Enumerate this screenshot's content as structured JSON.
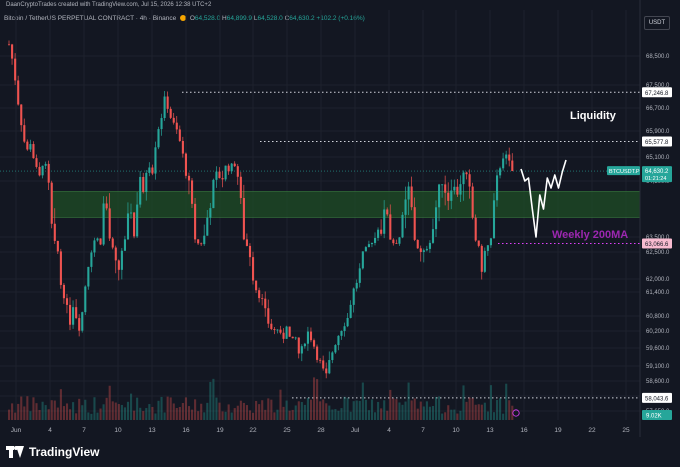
{
  "header": {
    "text": "DaanCryptoTrades created with TradingView.com, Jul 15, 2026 12:38 UTC+2"
  },
  "legend": {
    "symbol": "Bitcoin / TetherUS PERPETUAL CONTRACT · 4h · Binance",
    "o_label": "O",
    "o_value": "64,528.0",
    "h_label": "H",
    "h_value": "64,899.9",
    "l_label": "L",
    "l_value": "64,528.0",
    "c_label": "C",
    "c_value": "64,630.2",
    "change": "+102.2 (+0.16%)"
  },
  "currency": "USDT",
  "annotations": {
    "liquidity": "Liquidity",
    "weekly_ma": "Weekly 200MA"
  },
  "price_tag": {
    "symbol": "BTCUSDT.P",
    "price": "64,630.2",
    "countdown": "01:21:24"
  },
  "level_tags": {
    "top": "67,246.8",
    "upper": "65,577.8",
    "ma": "63,066.6",
    "bottom": "58,043.6"
  },
  "volume_tag": "9.02K",
  "branding": "TradingView",
  "colors": {
    "background": "#131722",
    "up": "#26a69a",
    "down": "#ef5350",
    "zone": "#1f4d25",
    "ma_label": "#9c27b0",
    "price_tag": "#26a69a"
  },
  "chart_data": {
    "type": "candlestick",
    "timeframe": "4h",
    "y_axis_ticks": [
      68500,
      67500,
      66700,
      65900,
      65100,
      64300,
      63500,
      62500,
      62000,
      61400,
      60800,
      60200,
      59600,
      59100,
      58600,
      58100,
      57650
    ],
    "y_tick_labels": [
      "68,500.0",
      "67,500.0",
      "66,700.0",
      "65,900.0",
      "65,100.0",
      "64,300.0",
      "63,500.0",
      "62,500.0",
      "62,000.0",
      "61,400.0",
      "60,800.0",
      "60,200.0",
      "59,600.0",
      "59,100.0",
      "58,600.0",
      "58,100.0",
      "57,650.0"
    ],
    "x_tick_labels": [
      "Jun",
      "4",
      "7",
      "10",
      "13",
      "16",
      "19",
      "22",
      "25",
      "28",
      "Jul",
      "4",
      "7",
      "10",
      "13",
      "16",
      "19",
      "22",
      "25"
    ],
    "levels": {
      "top_liquidity": 67246.8,
      "upper_liquidity": 65577.8,
      "weekly_200ma": 63066.6,
      "bottom_liquidity": 58043.6,
      "last_price": 64630.2
    },
    "zone": {
      "low": 63780,
      "high": 64150
    },
    "close_path": [
      68900,
      68200,
      67000,
      66000,
      65200,
      65600,
      64800,
      64400,
      65100,
      64300,
      63500,
      62800,
      61700,
      61200,
      60500,
      61300,
      60200,
      61000,
      62200,
      62600,
      63600,
      63000,
      64200,
      63600,
      62600,
      62000,
      62600,
      63500,
      64000,
      63400,
      64600,
      64000,
      65000,
      64600,
      65800,
      66300,
      67100,
      66500,
      66100,
      65800,
      65200,
      64400,
      64000,
      63300,
      62900,
      63500,
      63900,
      64200,
      64600,
      64300,
      64800,
      64700,
      64900,
      64300,
      63500,
      62800,
      62200,
      61500,
      61300,
      60900,
      60400,
      60200,
      60300,
      59800,
      60500,
      59700,
      60000,
      59300,
      59800,
      60200,
      59800,
      59400,
      59100,
      58700,
      59300,
      59700,
      60100,
      60400,
      60700,
      61300,
      61800,
      62200,
      62600,
      63000,
      63300,
      63700,
      63600,
      64000,
      63300,
      63000,
      63500,
      63800,
      64200,
      63800,
      62900,
      62400,
      62600,
      63200,
      63800,
      64100,
      64400,
      64000,
      64300,
      64100,
      64300,
      64600,
      64200,
      63700,
      63000,
      62200,
      62700,
      63300,
      64100,
      64700,
      65200,
      65000,
      64630
    ],
    "projection_path": [
      64700,
      64300,
      64400,
      63900,
      63500,
      64100,
      63900,
      64400,
      64200,
      64500,
      64200,
      64600,
      65000
    ]
  }
}
